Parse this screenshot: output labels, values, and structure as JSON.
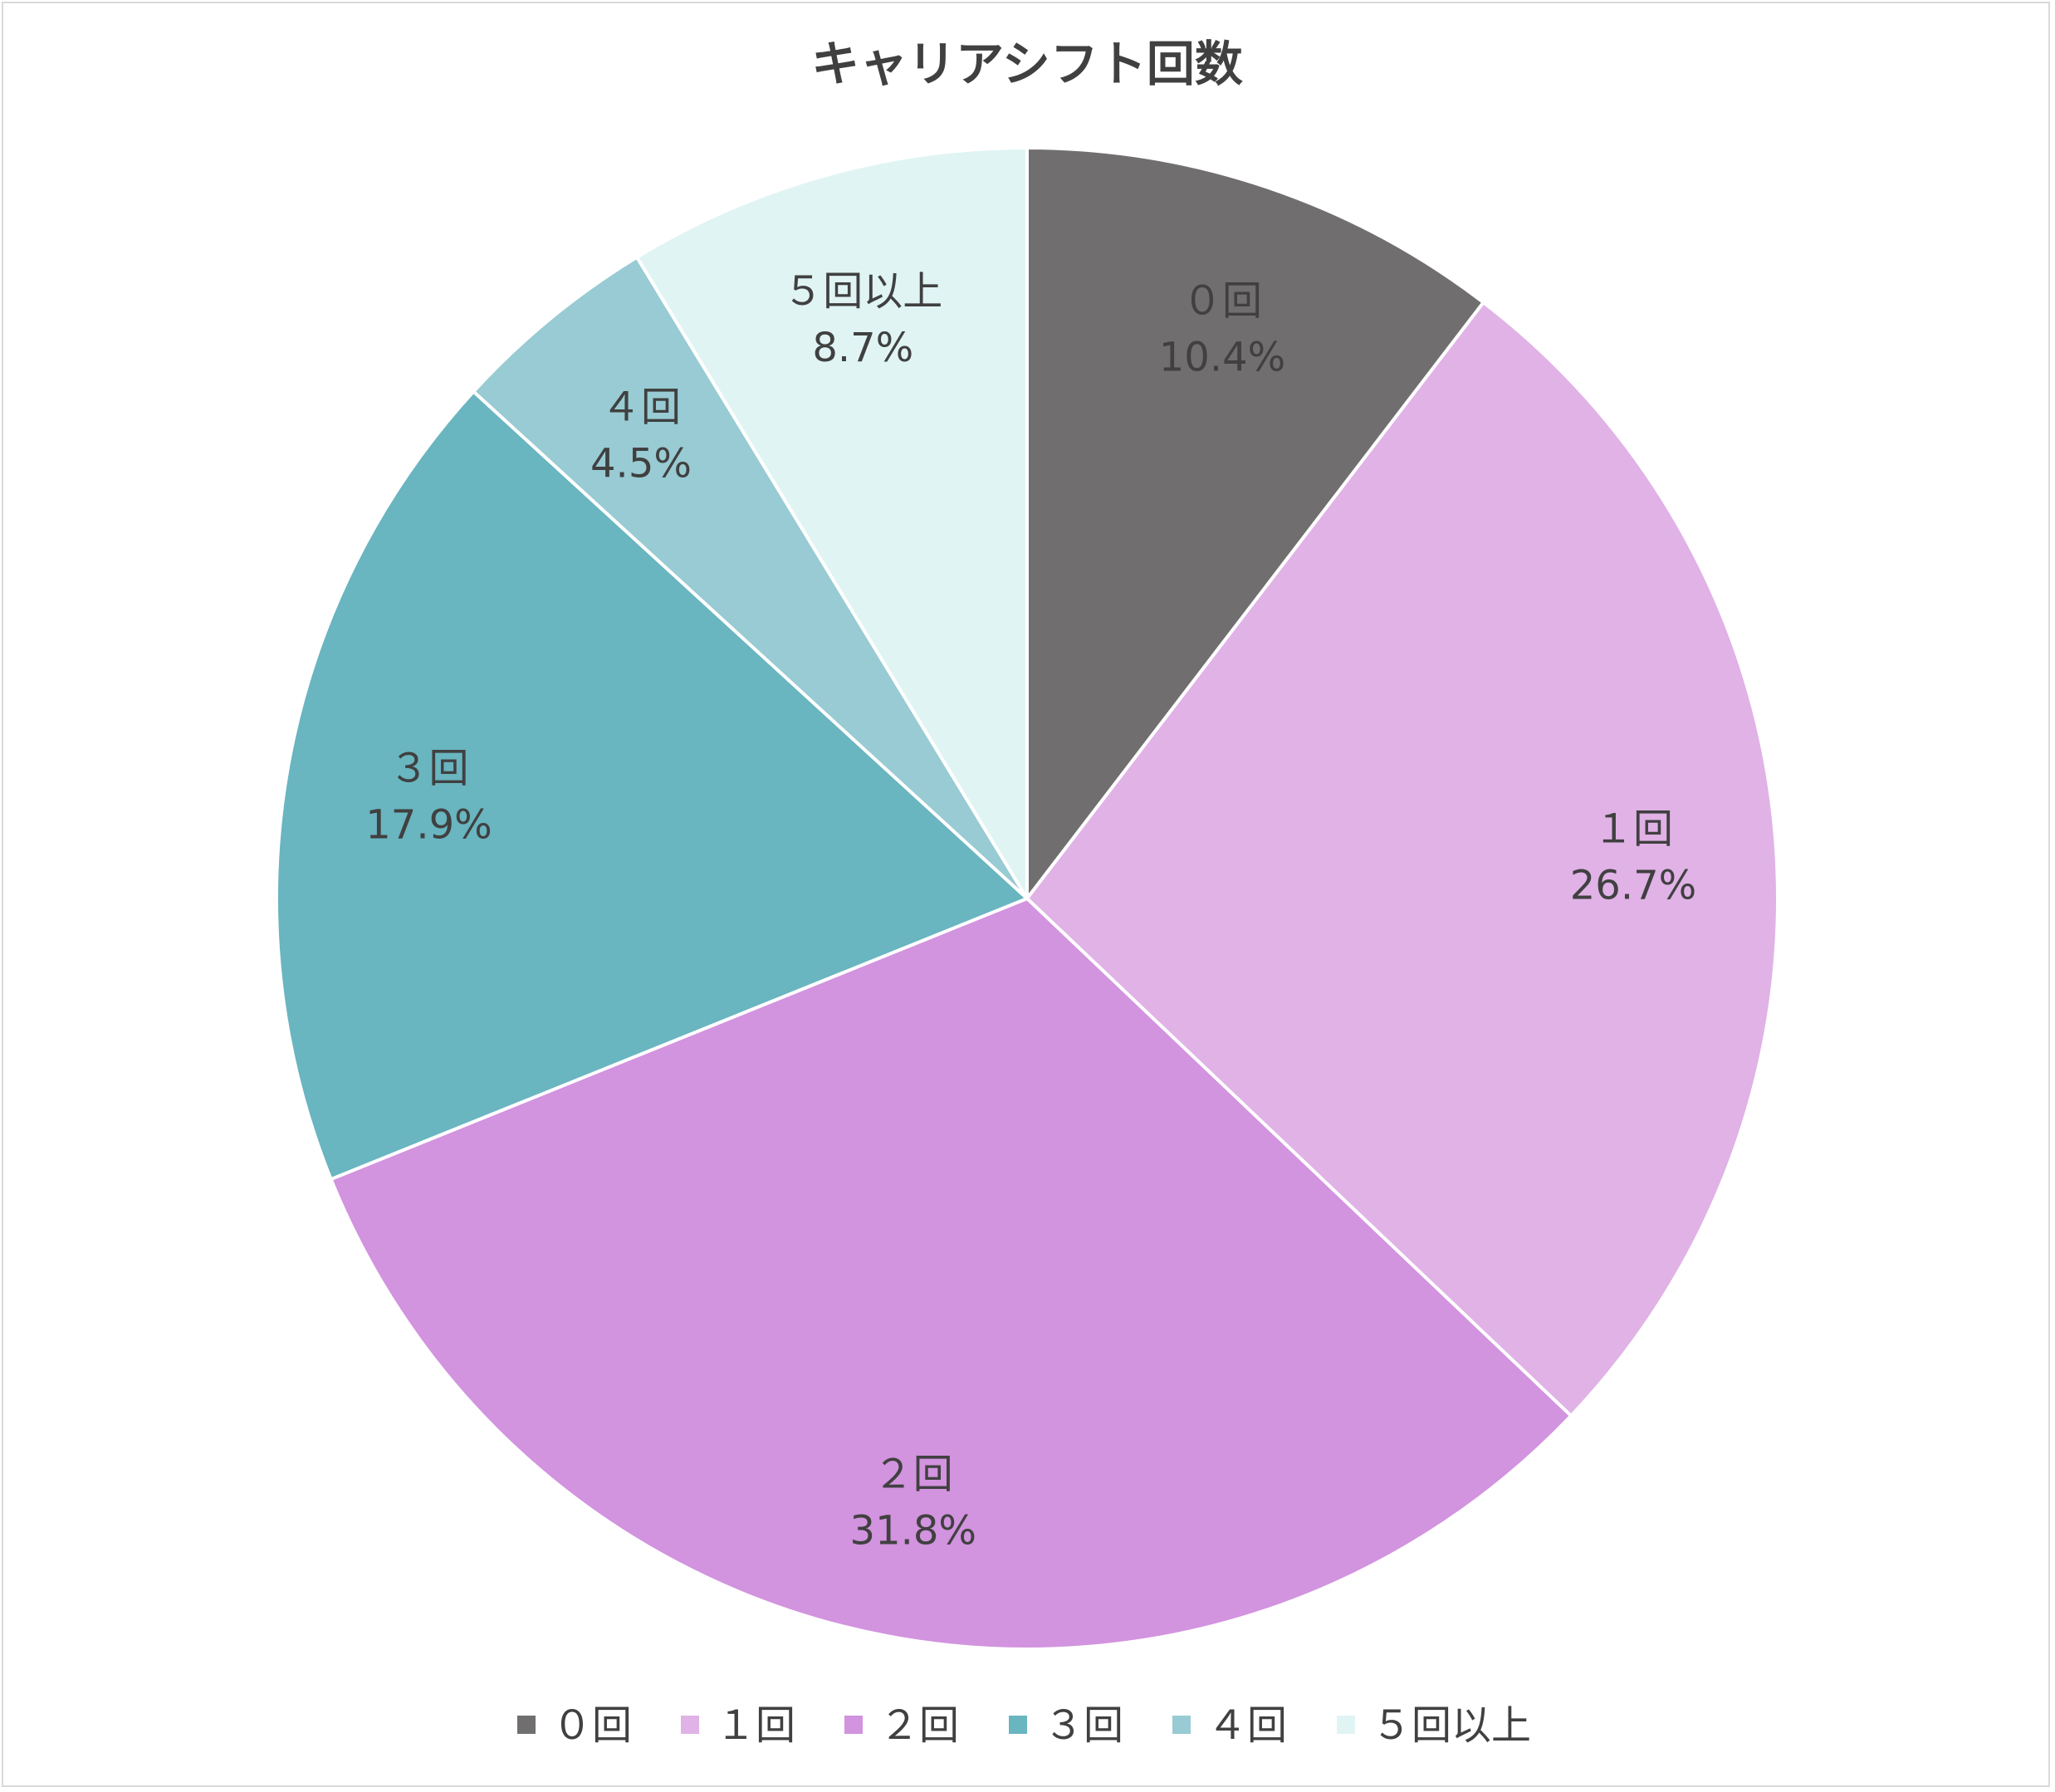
{
  "chart_data": {
    "type": "pie",
    "title": "キャリアシフト回数",
    "categories": [
      "０回",
      "１回",
      "２回",
      "３回",
      "４回",
      "５回以上"
    ],
    "values": [
      10.4,
      26.7,
      31.8,
      17.9,
      4.5,
      8.7
    ],
    "value_labels": [
      "10.4%",
      "26.7%",
      "31.8%",
      "17.9%",
      "4.5%",
      "8.7%"
    ],
    "colors": [
      "#706e6f",
      "#e0b2e6",
      "#d293df",
      "#69b5c0",
      "#98cbd3",
      "#e0f4f4"
    ],
    "start_angle": "12 o'clock",
    "direction": "clockwise",
    "legend_position": "bottom"
  }
}
